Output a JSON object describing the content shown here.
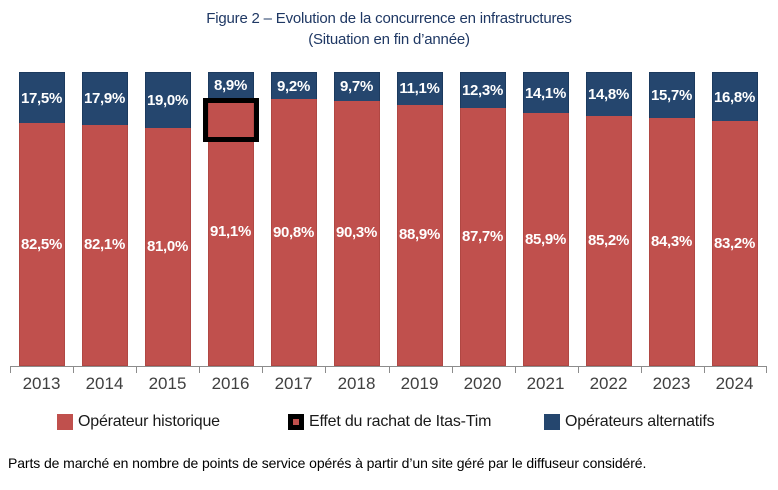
{
  "title": {
    "line1": "Figure 2 – Evolution de la concurrence en infrastructures",
    "line2": "(Situation en fin d’année)"
  },
  "chart_data": {
    "type": "bar",
    "variant": "stacked-100-percent-column",
    "categories": [
      "2013",
      "2014",
      "2015",
      "2016",
      "2017",
      "2018",
      "2019",
      "2020",
      "2021",
      "2022",
      "2023",
      "2024"
    ],
    "series": [
      {
        "name": "Opérateur historique",
        "color": "#C0504D",
        "values": [
          82.5,
          82.1,
          81.0,
          91.1,
          90.8,
          90.3,
          88.9,
          87.7,
          85.9,
          85.2,
          84.3,
          83.2
        ],
        "labels": [
          "82,5%",
          "82,1%",
          "81,0%",
          "91,1%",
          "90,8%",
          "90,3%",
          "88,9%",
          "87,7%",
          "85,9%",
          "85,2%",
          "84,3%",
          "83,2%"
        ]
      },
      {
        "name": "Opérateurs alternatifs",
        "color": "#25466E",
        "values": [
          17.5,
          17.9,
          19.0,
          8.9,
          9.2,
          9.7,
          11.1,
          12.3,
          14.1,
          14.8,
          15.7,
          16.8
        ],
        "labels": [
          "17,5%",
          "17,9%",
          "19,0%",
          "8,9%",
          "9,2%",
          "9,7%",
          "11,1%",
          "12,3%",
          "14,1%",
          "14,8%",
          "15,7%",
          "16,8%"
        ]
      }
    ],
    "annotation": {
      "label": "Effet du rachat de Itas-Tim",
      "category": "2016",
      "border_color": "#000000"
    },
    "legend": [
      {
        "label": "Opérateur historique",
        "marker": "red-square",
        "color": "#C0504D"
      },
      {
        "label": "Effet du rachat de Itas-Tim",
        "marker": "black-box-red-center",
        "color": "#000000"
      },
      {
        "label": "Opérateurs alternatifs",
        "marker": "blue-square",
        "color": "#25466E"
      }
    ],
    "ylim": [
      0,
      100
    ],
    "grid": false,
    "y_axis_shown": false,
    "legend_position": "bottom",
    "label_color": "#ffffff"
  },
  "caption": "Parts de marché en nombre de points de service opérés à partir d’un site géré par le diffuseur considéré."
}
